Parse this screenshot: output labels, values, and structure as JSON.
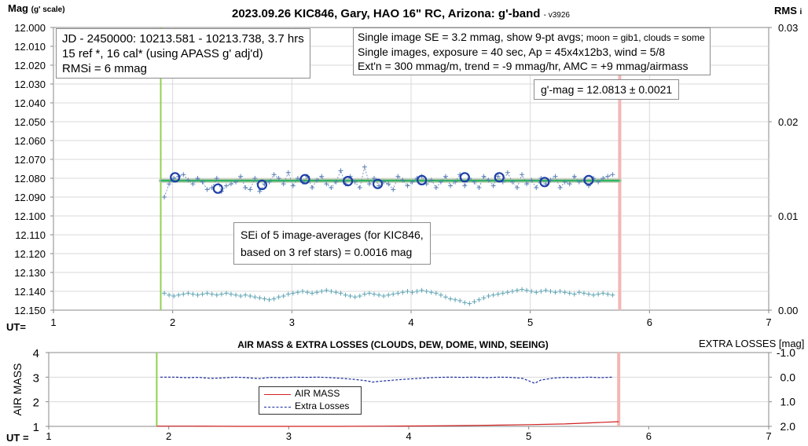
{
  "page": {
    "title": "2023.09.26 KIC846, Gary, HAO 16\" RC, Arizona: g'-band",
    "version": "- v3926",
    "top_left_label": "Mag",
    "top_left_sub": "(g' scale)",
    "top_right_label": "RMS",
    "top_right_sub": "i",
    "ut_label_top": "UT=",
    "ut_label_bottom": "UT ="
  },
  "info_boxes": {
    "jd_lines": [
      "JD - 2450000: 10213.581 - 10213.738, 3.7 hrs",
      "15 ref *, 16 cal* (using APASS g' adj'd)",
      "RMSi = 6 mmag"
    ],
    "se_line1_main": "Single image SE = 3.2 mmag, show  9-pt avgs;",
    "se_line1_small": " moon = gib1, clouds = some",
    "se_line2": "Single images, exposure = 40 sec, Ap = 45x4x12b3, wind = 5/8",
    "se_line3": "Ext'n = 300 mmag/m, trend = -9 mmag/hr, AMC = +9 mmag/airmass",
    "gmag": "g'-mag = 12.0813 ± 0.0021",
    "sei_lines": [
      "SEi of 5 image-averages (for KIC846,",
      "based on 3 ref stars) = 0.0016 mag"
    ]
  },
  "lower_panel": {
    "title": "AIR MASS & EXTRA LOSSES (CLOUDS, DEW, DOME, WIND, SEEING)",
    "right_title": "EXTRA LOSSES [mag]",
    "ylabel": "AIR MASS",
    "legend": [
      "AIR MASS",
      "Extra Losses"
    ]
  },
  "colors": {
    "start_line": "#92d050",
    "end_line": "#f4b6b6",
    "mean_band": "#a9c4a0",
    "mean_line": "#00b050",
    "points": "#5b7fb5",
    "avg_circles": "#1f3fa8",
    "rms_points": "#5ba3b3",
    "airmass": "#d02020",
    "losses": "#1a2aa0"
  },
  "chart_data": [
    {
      "type": "scatter",
      "title": "2023.09.26 KIC846, Gary, HAO 16\" RC, Arizona: g'-band",
      "xlabel": "UT=",
      "ylabel": "Mag (g' scale)",
      "y2label": "RMSi",
      "xlim": [
        1,
        7
      ],
      "ylim": [
        12.15,
        12.0
      ],
      "y2lim": [
        0,
        0.03
      ],
      "x_ticks": [
        1,
        2,
        3,
        4,
        5,
        6,
        7
      ],
      "y_ticks": [
        "12.000",
        "12.010",
        "12.020",
        "12.030",
        "12.040",
        "12.050",
        "12.060",
        "12.070",
        "12.080",
        "12.090",
        "12.100",
        "12.110",
        "12.120",
        "12.130",
        "12.140",
        "12.150"
      ],
      "y2_ticks": [
        "0.03",
        "0.02",
        "0.01",
        "0.00"
      ],
      "start_ut": 1.9,
      "end_ut": 5.75,
      "mean_mag": 12.0813,
      "series": [
        {
          "name": "",
          "x": [
            1.93,
            1.97,
            2.01,
            2.05,
            2.09,
            2.13,
            2.17,
            2.21,
            2.25,
            2.29,
            2.33,
            2.37,
            2.41,
            2.45,
            2.49,
            2.53,
            2.57,
            2.61,
            2.65,
            2.69,
            2.73,
            2.77,
            2.81,
            2.85,
            2.89,
            2.93,
            2.97,
            3.01,
            3.05,
            3.09,
            3.13,
            3.17,
            3.21,
            3.25,
            3.29,
            3.33,
            3.37,
            3.41,
            3.45,
            3.49,
            3.53,
            3.57,
            3.61,
            3.65,
            3.69,
            3.73,
            3.77,
            3.81,
            3.85,
            3.89,
            3.93,
            3.97,
            4.01,
            4.05,
            4.09,
            4.13,
            4.17,
            4.21,
            4.25,
            4.29,
            4.33,
            4.37,
            4.41,
            4.45,
            4.49,
            4.53,
            4.57,
            4.61,
            4.65,
            4.69,
            4.73,
            4.77,
            4.81,
            4.85,
            4.89,
            4.93,
            4.97,
            5.01,
            5.05,
            5.09,
            5.13,
            5.17,
            5.21,
            5.25,
            5.29,
            5.33,
            5.37,
            5.41,
            5.45,
            5.49,
            5.53,
            5.57,
            5.61,
            5.65,
            5.69
          ],
          "values": [
            12.09,
            12.083,
            12.08,
            12.079,
            12.078,
            12.081,
            12.083,
            12.08,
            12.082,
            12.086,
            12.085,
            12.08,
            12.087,
            12.084,
            12.083,
            12.082,
            12.079,
            12.085,
            12.086,
            12.08,
            12.087,
            12.083,
            12.082,
            12.078,
            12.08,
            12.083,
            12.077,
            12.084,
            12.08,
            12.082,
            12.079,
            12.085,
            12.081,
            12.079,
            12.083,
            12.085,
            12.082,
            12.076,
            12.083,
            12.079,
            12.082,
            12.085,
            12.074,
            12.083,
            12.08,
            12.084,
            12.082,
            12.083,
            12.086,
            12.079,
            12.081,
            12.084,
            12.082,
            12.08,
            12.079,
            12.083,
            12.081,
            12.085,
            12.082,
            12.079,
            12.084,
            12.082,
            12.078,
            12.084,
            12.08,
            12.082,
            12.085,
            12.079,
            12.081,
            12.084,
            12.079,
            12.082,
            12.077,
            12.082,
            12.085,
            12.078,
            12.083,
            12.081,
            12.085,
            12.08,
            12.083,
            12.081,
            12.079,
            12.085,
            12.082,
            12.083,
            12.079,
            12.082,
            12.081,
            12.084,
            12.08,
            12.082,
            12.08,
            12.079,
            12.078
          ]
        },
        {
          "name": "",
          "x": [
            2.02,
            2.38,
            2.75,
            3.11,
            3.47,
            3.72,
            4.09,
            4.45,
            4.74,
            5.12,
            5.49
          ],
          "values": [
            12.0795,
            12.0855,
            12.0835,
            12.0805,
            12.0815,
            12.083,
            12.081,
            12.0795,
            12.0795,
            12.082,
            12.081
          ]
        },
        {
          "name": "",
          "axis": "right",
          "x": [
            1.93,
            1.97,
            2.01,
            2.05,
            2.09,
            2.13,
            2.17,
            2.21,
            2.25,
            2.29,
            2.33,
            2.37,
            2.41,
            2.45,
            2.49,
            2.53,
            2.57,
            2.61,
            2.65,
            2.69,
            2.73,
            2.77,
            2.81,
            2.85,
            2.89,
            2.93,
            2.97,
            3.01,
            3.05,
            3.09,
            3.13,
            3.17,
            3.21,
            3.25,
            3.29,
            3.33,
            3.37,
            3.41,
            3.45,
            3.49,
            3.53,
            3.57,
            3.61,
            3.65,
            3.69,
            3.73,
            3.77,
            3.81,
            3.85,
            3.89,
            3.93,
            3.97,
            4.01,
            4.05,
            4.09,
            4.13,
            4.17,
            4.21,
            4.25,
            4.29,
            4.33,
            4.37,
            4.41,
            4.45,
            4.49,
            4.53,
            4.57,
            4.61,
            4.65,
            4.69,
            4.73,
            4.77,
            4.81,
            4.85,
            4.89,
            4.93,
            4.97,
            5.01,
            5.05,
            5.09,
            5.13,
            5.17,
            5.21,
            5.25,
            5.29,
            5.33,
            5.37,
            5.41,
            5.45,
            5.49,
            5.53,
            5.57,
            5.61,
            5.65,
            5.69
          ],
          "values": [
            0.0018,
            0.0016,
            0.0015,
            0.0016,
            0.0017,
            0.0018,
            0.0017,
            0.0016,
            0.0017,
            0.0018,
            0.0017,
            0.0016,
            0.0017,
            0.0018,
            0.0017,
            0.0016,
            0.0015,
            0.0016,
            0.0015,
            0.0014,
            0.0013,
            0.0012,
            0.0011,
            0.0012,
            0.0014,
            0.0015,
            0.0017,
            0.0018,
            0.0019,
            0.002,
            0.0019,
            0.0018,
            0.0019,
            0.002,
            0.0021,
            0.002,
            0.0019,
            0.0018,
            0.0016,
            0.0015,
            0.0014,
            0.0015,
            0.0017,
            0.0018,
            0.0017,
            0.0016,
            0.0015,
            0.0016,
            0.0017,
            0.0018,
            0.0019,
            0.002,
            0.0019,
            0.002,
            0.0021,
            0.002,
            0.0019,
            0.0018,
            0.0016,
            0.0014,
            0.0012,
            0.0011,
            0.001,
            0.0008,
            0.0007,
            0.0009,
            0.0011,
            0.0013,
            0.0015,
            0.0016,
            0.0017,
            0.0018,
            0.0019,
            0.002,
            0.0021,
            0.0022,
            0.0021,
            0.002,
            0.0019,
            0.002,
            0.0021,
            0.002,
            0.0019,
            0.002,
            0.0019,
            0.0018,
            0.0017,
            0.0019,
            0.0018,
            0.0017,
            0.0016,
            0.0017,
            0.0018,
            0.0017,
            0.0016
          ]
        }
      ]
    },
    {
      "type": "line",
      "title": "AIR MASS & EXTRA LOSSES (CLOUDS, DEW, DOME, WIND, SEEING)",
      "xlabel": "UT =",
      "ylabel": "AIR MASS",
      "y2label": "EXTRA LOSSES [mag]",
      "xlim": [
        1,
        7
      ],
      "ylim": [
        1,
        4
      ],
      "y2lim": [
        2.0,
        -1.0
      ],
      "x_ticks": [
        1,
        2,
        3,
        4,
        5,
        6,
        7
      ],
      "y_ticks": [
        "1",
        "2",
        "3",
        "4"
      ],
      "y2_ticks": [
        "-1.0",
        "0.0",
        "1.0",
        "2.0"
      ],
      "start_ut": 1.9,
      "end_ut": 5.75,
      "series": [
        {
          "name": "AIR MASS",
          "x": [
            1.9,
            2.2,
            2.6,
            3.0,
            3.4,
            3.8,
            4.2,
            4.6,
            5.0,
            5.3,
            5.5,
            5.75
          ],
          "values": [
            1.01,
            1.01,
            1.0,
            1.0,
            1.0,
            1.01,
            1.02,
            1.04,
            1.07,
            1.1,
            1.14,
            1.19
          ]
        },
        {
          "name": "Extra Losses",
          "axis": "right",
          "x": [
            1.93,
            2.05,
            2.15,
            2.25,
            2.35,
            2.45,
            2.55,
            2.65,
            2.75,
            2.85,
            2.95,
            3.05,
            3.15,
            3.25,
            3.35,
            3.45,
            3.55,
            3.65,
            3.7,
            3.75,
            3.85,
            3.95,
            4.05,
            4.15,
            4.25,
            4.35,
            4.45,
            4.55,
            4.65,
            4.75,
            4.85,
            4.95,
            5.0,
            5.05,
            5.1,
            5.2,
            5.3,
            5.4,
            5.5,
            5.6,
            5.7
          ],
          "values": [
            0.0,
            0.0,
            0.02,
            0.01,
            0.05,
            0.03,
            0.0,
            0.02,
            0.06,
            0.01,
            0.02,
            0.0,
            0.01,
            0.0,
            0.02,
            0.05,
            0.09,
            0.15,
            0.2,
            0.17,
            0.13,
            0.09,
            0.06,
            0.03,
            0.01,
            0.0,
            0.01,
            0.0,
            0.02,
            0.0,
            0.01,
            0.05,
            0.15,
            0.25,
            0.12,
            0.04,
            0.01,
            0.02,
            0.0,
            0.02,
            0.0
          ]
        }
      ]
    }
  ]
}
